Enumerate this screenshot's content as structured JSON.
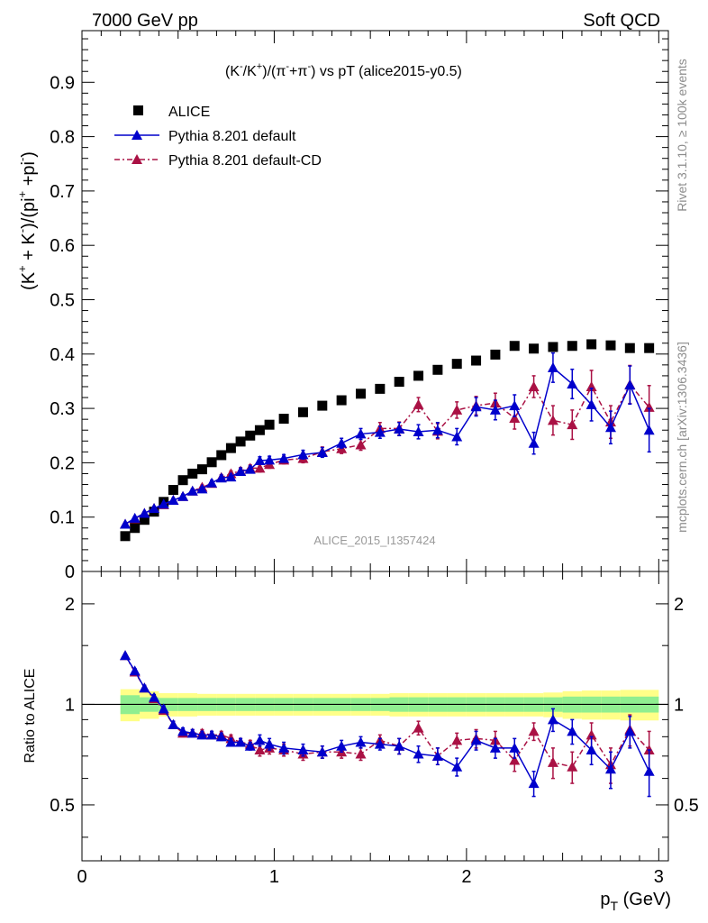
{
  "header": {
    "left": "7000 GeV pp",
    "right": "Soft QCD"
  },
  "side_labels": {
    "rivet": "Rivet 3.1.10, ≥ 100k events",
    "mcplots": "mcplots.cern.ch [arXiv:1306.3436]"
  },
  "watermark": "ALICE_2015_I1357424",
  "chart_data": [
    {
      "type": "scatter",
      "panel": "main",
      "title": "(K̄/K⁺)/(π̄+π̄) vs pT (alice2015-y0.5)",
      "title_parts": {
        "p1": "(K",
        "s1": "-",
        "p2": "/K",
        "s2": "+",
        "p3": ")/(π",
        "s3": "-",
        "p4": "+π",
        "s4": "-",
        "p5": ") vs pT (alice2015-y0.5)"
      },
      "ylabel": "(K⁺ + K⁻)/(pi⁺ +pi⁻)",
      "ylabel_parts": {
        "p1": "(K",
        "s1": "+",
        "p2": " + K",
        "s2": "-",
        "p3": ")/(pi",
        "s3": "+",
        "p4": " +pi",
        "s4": "-",
        "p5": ")"
      },
      "xlim": [
        0,
        3.05
      ],
      "ylim": [
        0,
        0.995
      ],
      "yticks": [
        0,
        0.1,
        0.2,
        0.3,
        0.4,
        0.5,
        0.6,
        0.7,
        0.8,
        0.9
      ],
      "ytick_labels": [
        "0",
        "0.1",
        "0.2",
        "0.3",
        "0.4",
        "0.5",
        "0.6",
        "0.7",
        "0.8",
        "0.9"
      ],
      "legend_position": "top-left",
      "series": [
        {
          "name": "ALICE",
          "marker": "square",
          "color": "#000000",
          "x": [
            0.225,
            0.275,
            0.325,
            0.375,
            0.425,
            0.475,
            0.525,
            0.575,
            0.625,
            0.675,
            0.725,
            0.775,
            0.825,
            0.875,
            0.925,
            0.975,
            1.05,
            1.15,
            1.25,
            1.35,
            1.45,
            1.55,
            1.65,
            1.75,
            1.85,
            1.95,
            2.05,
            2.15,
            2.25,
            2.35,
            2.45,
            2.55,
            2.65,
            2.75,
            2.85,
            2.95
          ],
          "y": [
            0.065,
            0.08,
            0.095,
            0.11,
            0.128,
            0.15,
            0.168,
            0.18,
            0.188,
            0.201,
            0.214,
            0.227,
            0.239,
            0.25,
            0.26,
            0.27,
            0.281,
            0.293,
            0.305,
            0.315,
            0.327,
            0.336,
            0.349,
            0.36,
            0.371,
            0.382,
            0.388,
            0.399,
            0.415,
            0.41,
            0.413,
            0.415,
            0.418,
            0.416,
            0.411,
            0.411
          ]
        },
        {
          "name": "Pythia 8.201 default",
          "marker": "triangle",
          "line": "solid",
          "color": "#0000cc",
          "x": [
            0.225,
            0.275,
            0.325,
            0.375,
            0.425,
            0.475,
            0.525,
            0.575,
            0.625,
            0.675,
            0.725,
            0.775,
            0.825,
            0.875,
            0.925,
            0.975,
            1.05,
            1.15,
            1.25,
            1.35,
            1.45,
            1.55,
            1.65,
            1.75,
            1.85,
            1.95,
            2.05,
            2.15,
            2.25,
            2.35,
            2.45,
            2.55,
            2.65,
            2.75,
            2.85,
            2.95
          ],
          "y": [
            0.087,
            0.098,
            0.107,
            0.116,
            0.124,
            0.131,
            0.138,
            0.148,
            0.152,
            0.163,
            0.172,
            0.174,
            0.184,
            0.188,
            0.204,
            0.205,
            0.208,
            0.215,
            0.219,
            0.236,
            0.253,
            0.256,
            0.262,
            0.257,
            0.26,
            0.248,
            0.303,
            0.297,
            0.305,
            0.236,
            0.375,
            0.345,
            0.307,
            0.265,
            0.343,
            0.26
          ],
          "yerr": [
            0.003,
            0.003,
            0.003,
            0.003,
            0.003,
            0.004,
            0.004,
            0.004,
            0.004,
            0.005,
            0.005,
            0.005,
            0.006,
            0.006,
            0.007,
            0.007,
            0.007,
            0.008,
            0.009,
            0.009,
            0.01,
            0.011,
            0.012,
            0.013,
            0.014,
            0.015,
            0.017,
            0.018,
            0.02,
            0.02,
            0.027,
            0.027,
            0.03,
            0.03,
            0.035,
            0.04
          ]
        },
        {
          "name": "Pythia 8.201 default-CD",
          "marker": "triangle",
          "line": "dash-dot",
          "color": "#aa1144",
          "x": [
            0.225,
            0.275,
            0.325,
            0.375,
            0.425,
            0.475,
            0.525,
            0.575,
            0.625,
            0.675,
            0.725,
            0.775,
            0.825,
            0.875,
            0.925,
            0.975,
            1.05,
            1.15,
            1.25,
            1.35,
            1.45,
            1.55,
            1.65,
            1.75,
            1.85,
            1.95,
            2.05,
            2.15,
            2.25,
            2.35,
            2.45,
            2.55,
            2.65,
            2.75,
            2.85,
            2.95
          ],
          "y": [
            0.087,
            0.097,
            0.107,
            0.116,
            0.123,
            0.131,
            0.138,
            0.148,
            0.155,
            0.162,
            0.173,
            0.18,
            0.185,
            0.19,
            0.19,
            0.197,
            0.205,
            0.208,
            0.22,
            0.226,
            0.233,
            0.263,
            0.263,
            0.307,
            0.258,
            0.297,
            0.305,
            0.31,
            0.282,
            0.34,
            0.278,
            0.27,
            0.34,
            0.275,
            0.344,
            0.302
          ],
          "yerr": [
            0.003,
            0.003,
            0.003,
            0.003,
            0.003,
            0.004,
            0.004,
            0.004,
            0.004,
            0.005,
            0.005,
            0.005,
            0.006,
            0.006,
            0.007,
            0.007,
            0.007,
            0.008,
            0.009,
            0.009,
            0.01,
            0.011,
            0.012,
            0.013,
            0.014,
            0.015,
            0.017,
            0.018,
            0.02,
            0.02,
            0.027,
            0.027,
            0.03,
            0.03,
            0.035,
            0.04
          ]
        }
      ]
    },
    {
      "type": "scatter",
      "panel": "ratio",
      "ylabel": "Ratio to ALICE",
      "xlabel": "p_T (GeV)",
      "xlabel_parts": {
        "main": "p",
        "sub": "T",
        "rest": " (GeV)"
      },
      "xlim": [
        0,
        3.05
      ],
      "ylim": [
        0.34,
        2.5
      ],
      "xticks": [
        0,
        1,
        2,
        3
      ],
      "xtick_labels": [
        "0",
        "1",
        "2",
        "3"
      ],
      "yticks": [
        0.5,
        1,
        2
      ],
      "ytick_labels": [
        "0.5",
        "1",
        "2"
      ],
      "band_edges": [
        0.2,
        0.3,
        0.4,
        0.5,
        0.6,
        0.7,
        0.8,
        0.9,
        1.0,
        1.1,
        1.2,
        1.3,
        1.4,
        1.5,
        1.6,
        1.7,
        1.8,
        1.9,
        2.0,
        2.1,
        2.2,
        2.3,
        2.4,
        2.5,
        2.6,
        2.7,
        2.8,
        2.9,
        3.0
      ],
      "stat_band_halfwidth": [
        0.065,
        0.05,
        0.045,
        0.045,
        0.045,
        0.045,
        0.045,
        0.045,
        0.045,
        0.045,
        0.045,
        0.045,
        0.045,
        0.045,
        0.05,
        0.05,
        0.05,
        0.05,
        0.05,
        0.05,
        0.05,
        0.05,
        0.05,
        0.055,
        0.055,
        0.055,
        0.055,
        0.055
      ],
      "total_band_halfwidth": [
        0.11,
        0.095,
        0.08,
        0.08,
        0.075,
        0.075,
        0.075,
        0.075,
        0.075,
        0.075,
        0.075,
        0.075,
        0.075,
        0.075,
        0.08,
        0.08,
        0.08,
        0.08,
        0.08,
        0.08,
        0.08,
        0.08,
        0.085,
        0.095,
        0.1,
        0.1,
        0.105,
        0.105
      ],
      "band_colors": {
        "total": "#ffff88",
        "stat": "#90ee90"
      },
      "series": [
        {
          "name": "Pythia 8.201 default",
          "marker": "triangle",
          "line": "solid",
          "color": "#0000cc",
          "x": [
            0.225,
            0.275,
            0.325,
            0.375,
            0.425,
            0.475,
            0.525,
            0.575,
            0.625,
            0.675,
            0.725,
            0.775,
            0.825,
            0.875,
            0.925,
            0.975,
            1.05,
            1.15,
            1.25,
            1.35,
            1.45,
            1.55,
            1.65,
            1.75,
            1.85,
            1.95,
            2.05,
            2.15,
            2.25,
            2.35,
            2.45,
            2.55,
            2.65,
            2.75,
            2.85,
            2.95
          ],
          "y": [
            1.4,
            1.26,
            1.12,
            1.05,
            0.97,
            0.87,
            0.83,
            0.82,
            0.81,
            0.81,
            0.8,
            0.77,
            0.77,
            0.75,
            0.78,
            0.76,
            0.74,
            0.73,
            0.72,
            0.75,
            0.77,
            0.76,
            0.75,
            0.71,
            0.7,
            0.65,
            0.78,
            0.74,
            0.74,
            0.58,
            0.9,
            0.83,
            0.73,
            0.64,
            0.83,
            0.63
          ],
          "yerr": [
            0.02,
            0.02,
            0.02,
            0.02,
            0.02,
            0.02,
            0.02,
            0.02,
            0.02,
            0.02,
            0.02,
            0.02,
            0.02,
            0.02,
            0.03,
            0.03,
            0.03,
            0.03,
            0.03,
            0.03,
            0.03,
            0.03,
            0.04,
            0.04,
            0.04,
            0.04,
            0.05,
            0.05,
            0.05,
            0.05,
            0.07,
            0.07,
            0.07,
            0.08,
            0.09,
            0.1
          ]
        },
        {
          "name": "Pythia 8.201 default-CD",
          "marker": "triangle",
          "line": "dash-dot",
          "color": "#aa1144",
          "x": [
            0.225,
            0.275,
            0.325,
            0.375,
            0.425,
            0.475,
            0.525,
            0.575,
            0.625,
            0.675,
            0.725,
            0.775,
            0.825,
            0.875,
            0.925,
            0.975,
            1.05,
            1.15,
            1.25,
            1.35,
            1.45,
            1.55,
            1.65,
            1.75,
            1.85,
            1.95,
            2.05,
            2.15,
            2.25,
            2.35,
            2.45,
            2.55,
            2.65,
            2.75,
            2.85,
            2.95
          ],
          "y": [
            1.4,
            1.25,
            1.12,
            1.04,
            0.96,
            0.87,
            0.82,
            0.82,
            0.82,
            0.81,
            0.81,
            0.79,
            0.77,
            0.76,
            0.73,
            0.74,
            0.73,
            0.71,
            0.72,
            0.72,
            0.71,
            0.78,
            0.75,
            0.85,
            0.7,
            0.78,
            0.79,
            0.78,
            0.68,
            0.83,
            0.67,
            0.65,
            0.81,
            0.66,
            0.84,
            0.73
          ],
          "yerr": [
            0.02,
            0.02,
            0.02,
            0.02,
            0.02,
            0.02,
            0.02,
            0.02,
            0.02,
            0.02,
            0.02,
            0.02,
            0.02,
            0.02,
            0.03,
            0.03,
            0.03,
            0.03,
            0.03,
            0.03,
            0.03,
            0.03,
            0.04,
            0.04,
            0.04,
            0.04,
            0.05,
            0.05,
            0.05,
            0.05,
            0.07,
            0.07,
            0.07,
            0.08,
            0.09,
            0.1
          ]
        }
      ]
    }
  ]
}
